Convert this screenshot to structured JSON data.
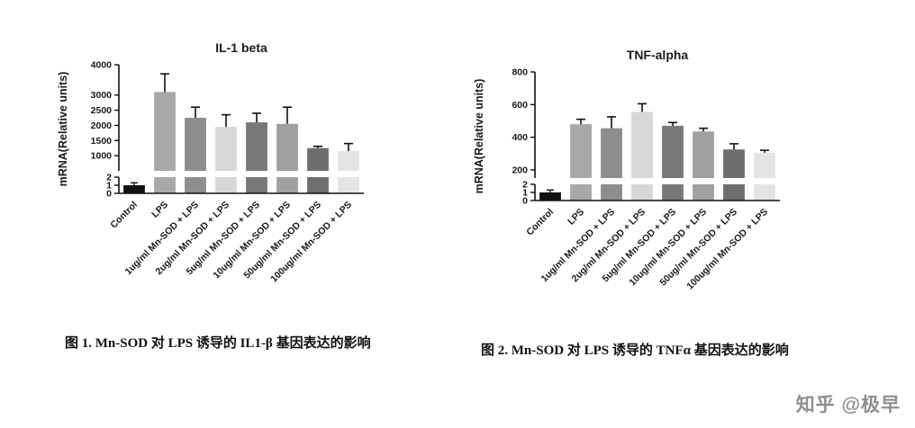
{
  "watermark": "知乎 @极早",
  "chart_data": [
    {
      "type": "bar",
      "title": "IL-1 beta",
      "ylabel": "mRNA(Relative units)",
      "caption": "图 1. Mn-SOD 对 LPS 诱导的 IL1-β 基因表达的影响",
      "categories": [
        "Control",
        "LPS",
        "1ug/ml Mn-SOD + LPS",
        "2ug/ml Mn-SOD + LPS",
        "5ug/ml Mn-SOD + LPS",
        "10ug/ml Mn-SOD + LPS",
        "50ug/ml Mn-SOD + LPS",
        "100ug/ml Mn-SOD + LPS"
      ],
      "values": [
        1,
        3100,
        2250,
        1950,
        2100,
        2050,
        1250,
        1150
      ],
      "errors": [
        0.3,
        600,
        350,
        400,
        300,
        550,
        60,
        250
      ],
      "bar_colors": [
        "#121212",
        "#a8a8a8",
        "#8d8d8d",
        "#d7d7d7",
        "#787878",
        "#a0a0a0",
        "#6e6e6e",
        "#e4e4e4"
      ],
      "error_color": "#111111",
      "axis_break": true,
      "lower_axis": {
        "ticks": [
          0,
          1,
          2
        ],
        "max": 2
      },
      "upper_axis": {
        "ticks": [
          1000,
          1500,
          2000,
          2500,
          3000,
          4000
        ],
        "min": 500,
        "max": 4000
      },
      "legend": "none",
      "grid": false
    },
    {
      "type": "bar",
      "title": "TNF-alpha",
      "ylabel": "mRNA(Relative units)",
      "caption": "图 2. Mn-SOD 对 LPS 诱导的 TNFα 基因表达的影响",
      "categories": [
        "Control",
        "LPS",
        "1ug/ml Mn-SOD + LPS",
        "2ug/ml Mn-SOD + LPS",
        "5ug/ml Mn-SOD + LPS",
        "10ug/ml Mn-SOD + LPS",
        "50ug/ml Mn-SOD + LPS",
        "100ug/ml Mn-SOD + LPS"
      ],
      "values": [
        1,
        480,
        455,
        555,
        470,
        435,
        325,
        305
      ],
      "errors": [
        0.3,
        30,
        70,
        50,
        20,
        20,
        35,
        15
      ],
      "bar_colors": [
        "#121212",
        "#a8a8a8",
        "#8d8d8d",
        "#d7d7d7",
        "#787878",
        "#a0a0a0",
        "#6e6e6e",
        "#e4e4e4"
      ],
      "error_color": "#111111",
      "axis_break": true,
      "lower_axis": {
        "ticks": [
          0,
          1,
          2
        ],
        "max": 2
      },
      "upper_axis": {
        "ticks": [
          200,
          400,
          600,
          800
        ],
        "min": 150,
        "max": 800
      },
      "legend": "none",
      "grid": false
    }
  ]
}
